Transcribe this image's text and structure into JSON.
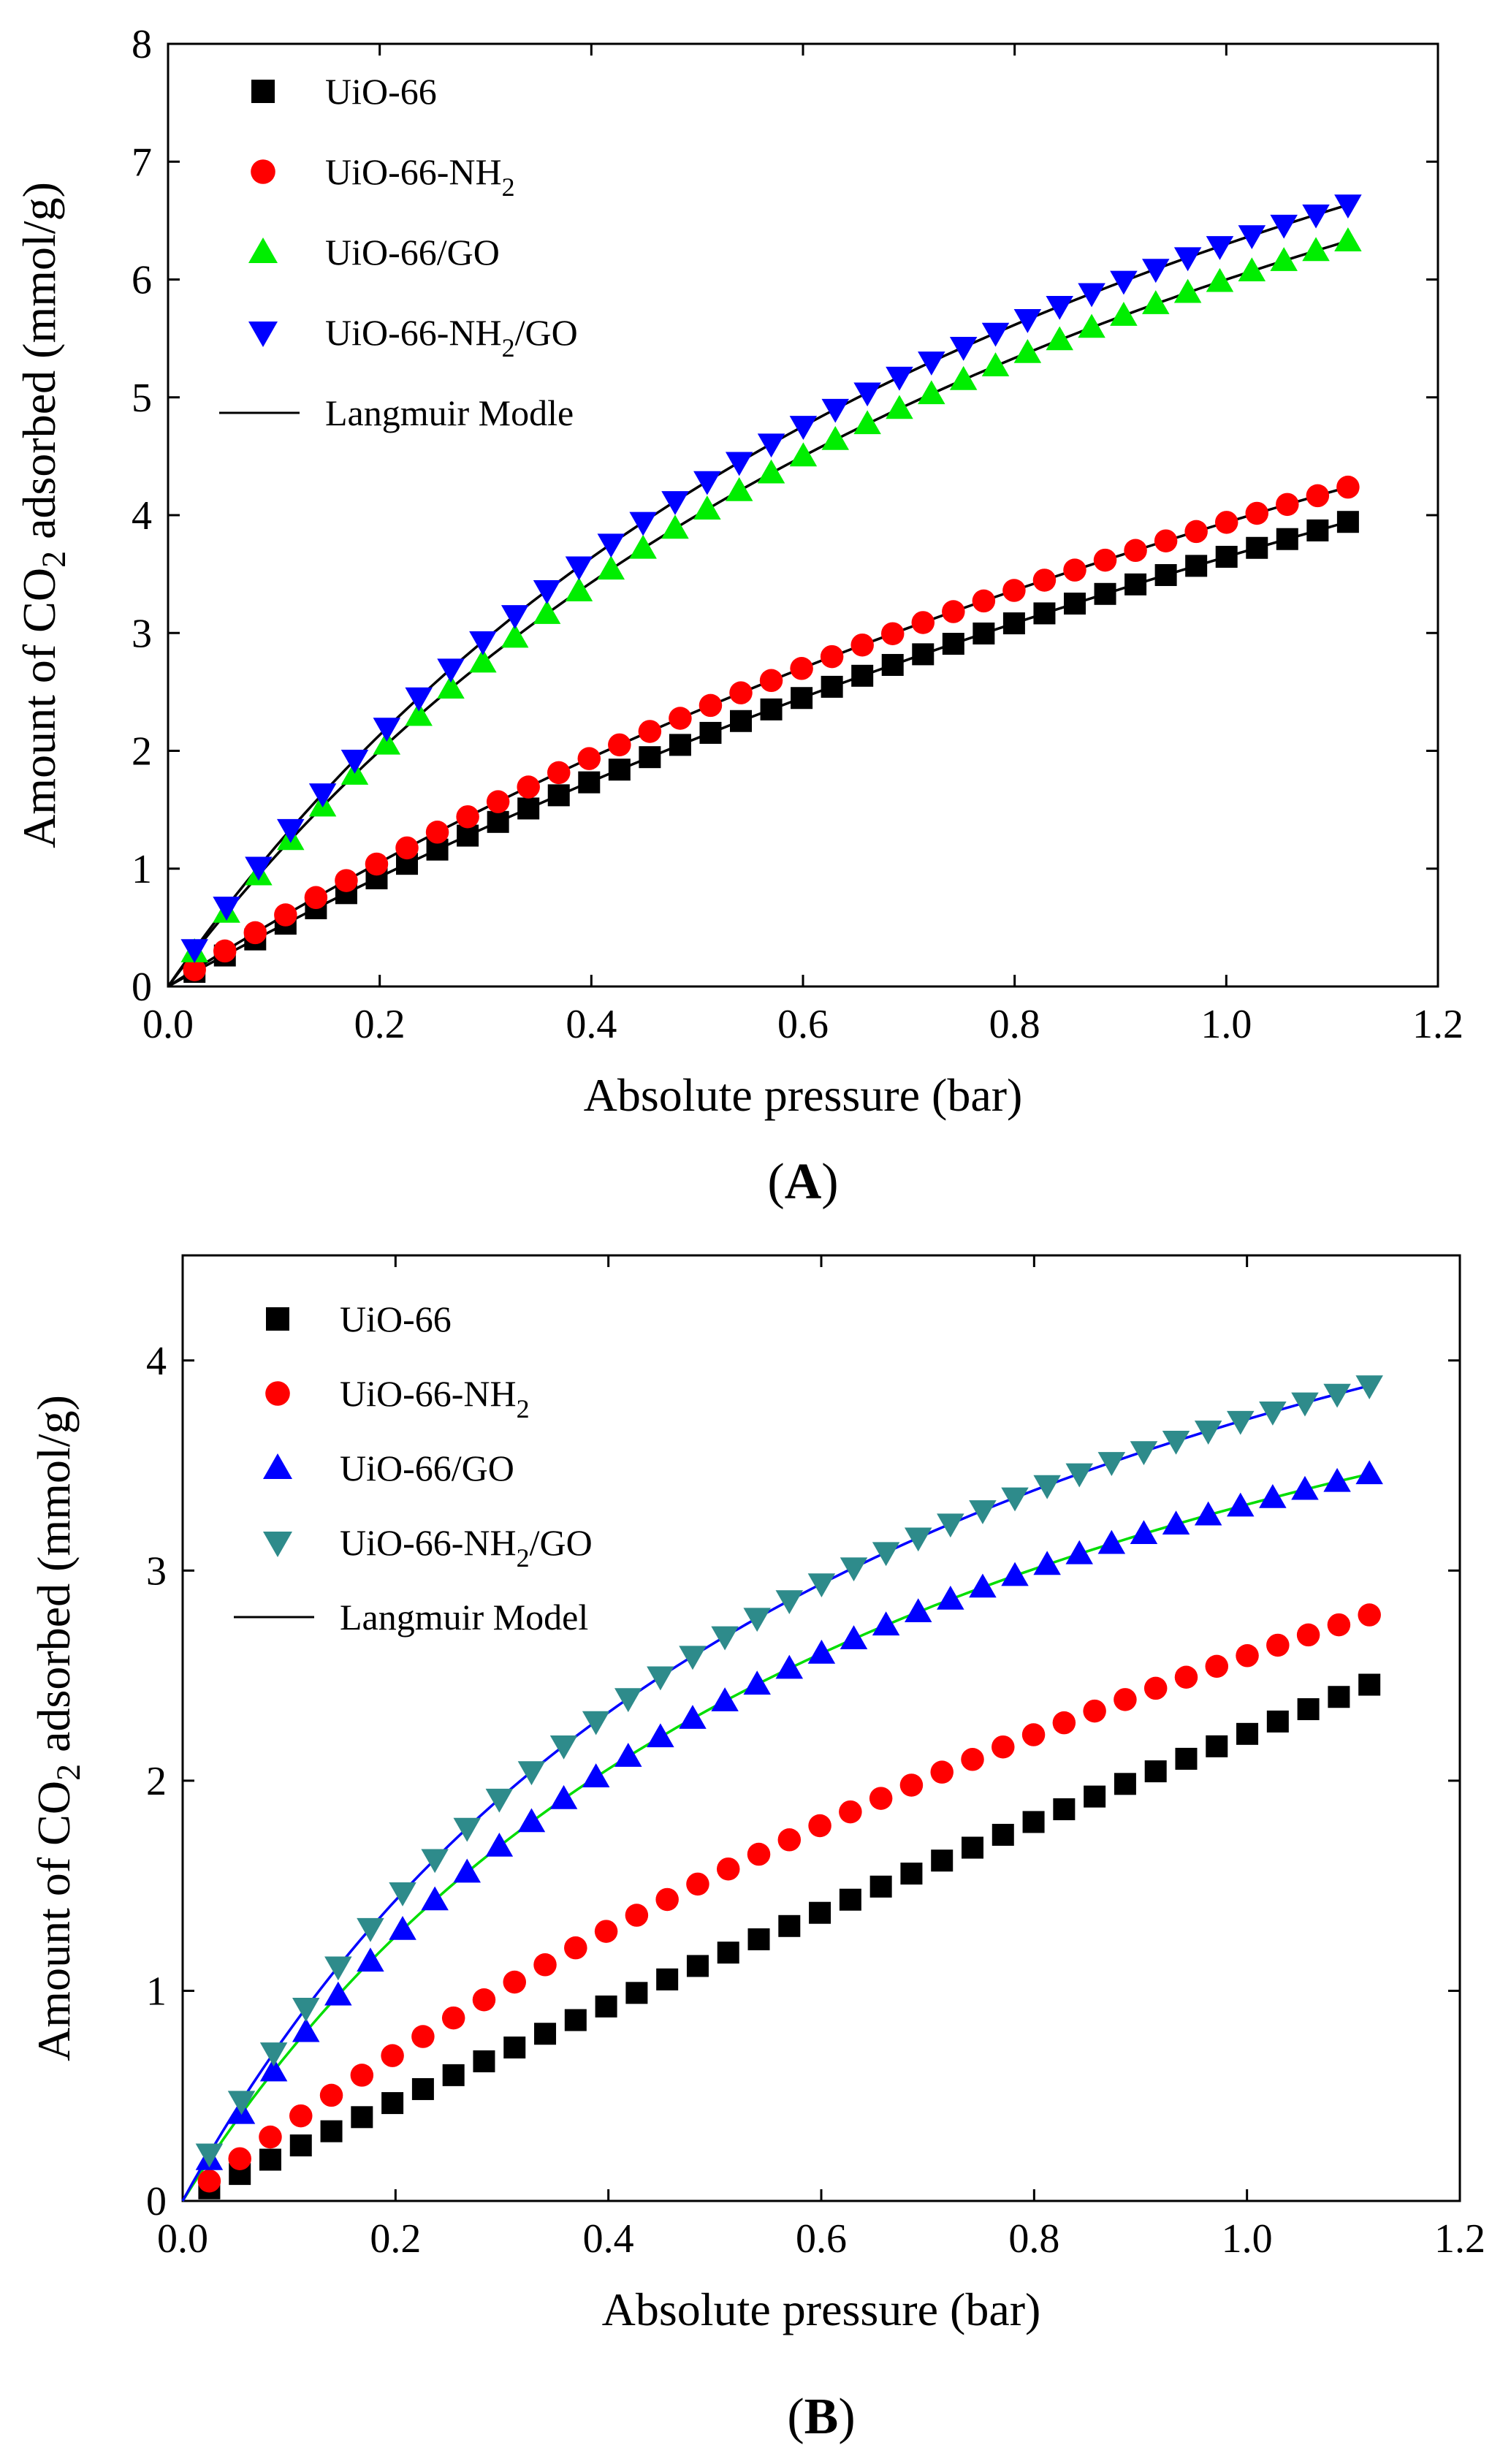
{
  "chart_data": [
    {
      "type": "scatter",
      "panel_label": "A",
      "xlabel": "Absolute pressure (bar)",
      "ylabel_parts": [
        "Amount of CO",
        "2",
        " adsorbed (mmol/g)"
      ],
      "xlim": [
        0.0,
        1.2
      ],
      "ylim": [
        0,
        8
      ],
      "xticks": [
        "0.0",
        "0.2",
        "0.4",
        "0.6",
        "0.8",
        "1.0",
        "1.2"
      ],
      "yticks": [
        "0",
        "1",
        "2",
        "3",
        "4",
        "5",
        "6",
        "7",
        "8"
      ],
      "legend_position": "top-left",
      "legend": [
        {
          "parts": [
            "UiO-66"
          ],
          "marker": "square",
          "color": "#000000"
        },
        {
          "parts": [
            "UiO-66-NH",
            "2",
            ""
          ],
          "marker": "circle",
          "color": "#ff0000"
        },
        {
          "parts": [
            "UiO-66/GO"
          ],
          "marker": "triangle-up",
          "color": "#00ee00"
        },
        {
          "parts": [
            "UiO-66-NH",
            "2",
            "/GO"
          ],
          "marker": "triangle-down",
          "color": "#0000ff"
        },
        {
          "parts": [
            "Langmuir Modle"
          ],
          "marker": "line",
          "color": "#000000"
        }
      ],
      "series": [
        {
          "name": "UiO-66",
          "marker": "square",
          "color": "#000000",
          "qmax": 13.5,
          "b": 0.37,
          "xmin": 0.025,
          "xmax": 1.115,
          "n": 39
        },
        {
          "name": "UiO-66-NH2",
          "marker": "circle",
          "color": "#ff0000",
          "qmax": 12.5,
          "b": 0.46,
          "xmin": 0.025,
          "xmax": 1.115,
          "n": 39
        },
        {
          "name": "UiO-66/GO",
          "marker": "triangle-up",
          "color": "#00ee00",
          "qmax": 12.0,
          "b": 1.0,
          "xmin": 0.025,
          "xmax": 1.115,
          "n": 37
        },
        {
          "name": "UiO-66-NH2/GO",
          "marker": "triangle-down",
          "color": "#0000ff",
          "qmax": 12.3,
          "b": 1.05,
          "xmin": 0.025,
          "xmax": 1.115,
          "n": 37
        }
      ],
      "fits": [
        {
          "qmax": 13.5,
          "b": 0.37,
          "color": "#000000"
        },
        {
          "qmax": 12.5,
          "b": 0.46,
          "color": "#000000"
        },
        {
          "qmax": 12.0,
          "b": 1.0,
          "color": "#000000"
        },
        {
          "qmax": 12.3,
          "b": 1.05,
          "color": "#000000"
        }
      ]
    },
    {
      "type": "scatter",
      "panel_label": "B",
      "xlabel": "Absolute pressure (bar)",
      "ylabel_parts": [
        "Amount of CO",
        "2",
        " adsorbed (mmol/g)"
      ],
      "xlim": [
        0.0,
        1.2
      ],
      "ylim": [
        0,
        4.5
      ],
      "xticks": [
        "0.0",
        "0.2",
        "0.4",
        "0.6",
        "0.8",
        "1.0",
        "1.2"
      ],
      "yticks": [
        "0",
        "1",
        "2",
        "3",
        "4"
      ],
      "legend_position": "top-left",
      "legend": [
        {
          "parts": [
            "UiO-66"
          ],
          "marker": "square",
          "color": "#000000"
        },
        {
          "parts": [
            "UiO-66-NH",
            "2",
            ""
          ],
          "marker": "circle",
          "color": "#ff0000"
        },
        {
          "parts": [
            "UiO-66/GO"
          ],
          "marker": "triangle-up",
          "color": "#0000ff"
        },
        {
          "parts": [
            "UiO-66-NH",
            "2",
            "/GO"
          ],
          "marker": "triangle-down",
          "color": "#2e8b8b"
        },
        {
          "parts": [
            "Langmuir Model"
          ],
          "marker": "line",
          "color": "#000000"
        }
      ],
      "series": [
        {
          "name": "UiO-66",
          "marker": "square",
          "color": "#000000",
          "qmax": 30.0,
          "b": 0.08,
          "xmin": 0.025,
          "xmax": 1.115,
          "n": 39
        },
        {
          "name": "UiO-66-NH2",
          "marker": "circle",
          "color": "#ff0000",
          "qmax": 8.0,
          "b": 0.48,
          "xmin": 0.025,
          "xmax": 1.115,
          "n": 39
        },
        {
          "name": "UiO-66/GO",
          "marker": "triangle-up",
          "color": "#0000ff",
          "qmax": 5.6,
          "b": 1.45,
          "xmin": 0.025,
          "xmax": 1.115,
          "n": 37
        },
        {
          "name": "UiO-66-NH2/GO",
          "marker": "triangle-down",
          "color": "#2e8b8b",
          "qmax": 6.2,
          "b": 1.5,
          "xmin": 0.025,
          "xmax": 1.115,
          "n": 37
        }
      ],
      "fits": [
        {
          "qmax": 5.6,
          "b": 1.45,
          "color": "#00dd00"
        },
        {
          "qmax": 6.2,
          "b": 1.5,
          "color": "#0000ff"
        }
      ]
    }
  ]
}
